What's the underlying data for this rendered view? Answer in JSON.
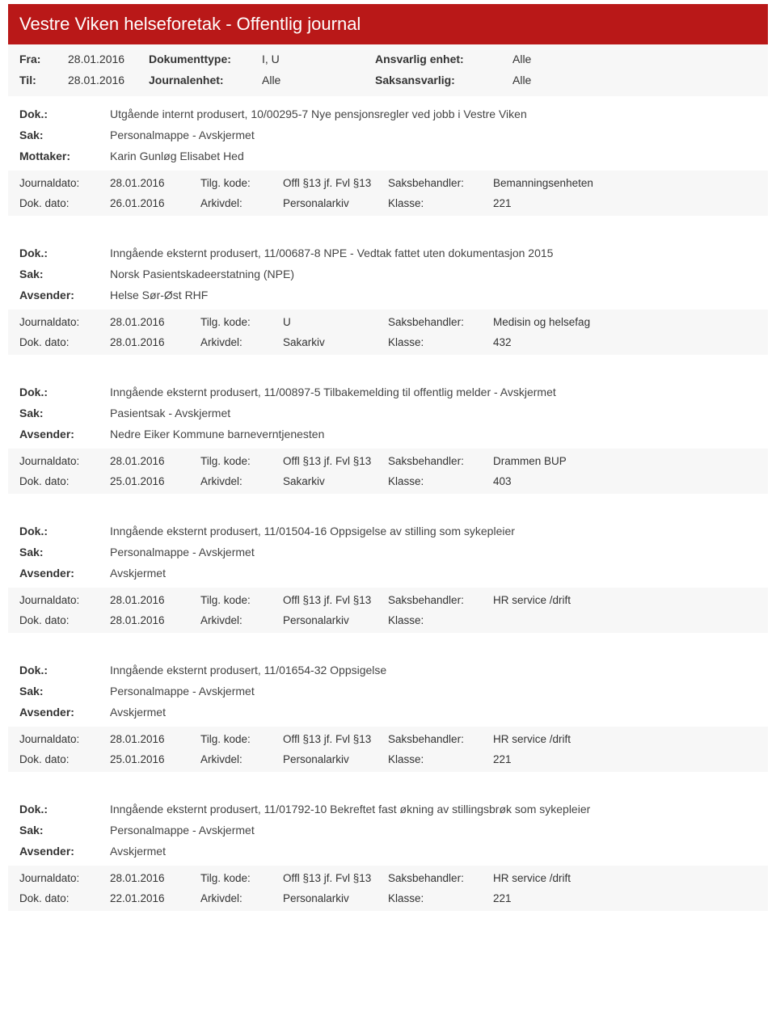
{
  "page_title": "Vestre Viken helseforetak - Offentlig journal",
  "filters": {
    "fra_label": "Fra:",
    "fra_value": "28.01.2016",
    "til_label": "Til:",
    "til_value": "28.01.2016",
    "dokumenttype_label": "Dokumenttype:",
    "dokumenttype_value": "I, U",
    "journalenhet_label": "Journalenhet:",
    "journalenhet_value": "Alle",
    "ansvarlig_label": "Ansvarlig enhet:",
    "ansvarlig_value": "Alle",
    "saksansvarlig_label": "Saksansvarlig:",
    "saksansvarlig_value": "Alle"
  },
  "labels": {
    "dok": "Dok.:",
    "sak": "Sak:",
    "mottaker": "Mottaker:",
    "avsender": "Avsender:",
    "journaldato": "Journaldato:",
    "dokdato": "Dok. dato:",
    "tilgkode": "Tilg. kode:",
    "arkivdel": "Arkivdel:",
    "saksbehandler": "Saksbehandler:",
    "klasse": "Klasse:"
  },
  "entries": [
    {
      "dok": "Utgående internt produsert, 10/00295-7 Nye pensjonsregler ved jobb i Vestre Viken",
      "sak": "Personalmappe - Avskjermet",
      "party_label": "Mottaker:",
      "party_value": "Karin Gunløg Elisabet Hed",
      "journaldato": "28.01.2016",
      "tilgkode": "Offl §13 jf. Fvl §13",
      "saksbehandler": "Bemanningsenheten",
      "dokdato": "26.01.2016",
      "arkivdel": "Personalarkiv",
      "klasse": "221"
    },
    {
      "dok": "Inngående eksternt produsert, 11/00687-8 NPE - Vedtak fattet uten dokumentasjon 2015",
      "sak": "Norsk Pasientskadeerstatning (NPE)",
      "party_label": "Avsender:",
      "party_value": "Helse Sør-Øst RHF",
      "journaldato": "28.01.2016",
      "tilgkode": "U",
      "saksbehandler": "Medisin og helsefag",
      "dokdato": "28.01.2016",
      "arkivdel": "Sakarkiv",
      "klasse": "432"
    },
    {
      "dok": "Inngående eksternt produsert, 11/00897-5 Tilbakemelding til offentlig melder - Avskjermet",
      "sak": "Pasientsak - Avskjermet",
      "party_label": "Avsender:",
      "party_value": "Nedre Eiker Kommune barneverntjenesten",
      "journaldato": "28.01.2016",
      "tilgkode": "Offl §13 jf. Fvl §13",
      "saksbehandler": "Drammen BUP",
      "dokdato": "25.01.2016",
      "arkivdel": "Sakarkiv",
      "klasse": "403"
    },
    {
      "dok": "Inngående eksternt produsert, 11/01504-16 Oppsigelse av stilling som sykepleier",
      "sak": "Personalmappe - Avskjermet",
      "party_label": "Avsender:",
      "party_value": "Avskjermet",
      "journaldato": "28.01.2016",
      "tilgkode": "Offl §13 jf. Fvl §13",
      "saksbehandler": "HR service /drift",
      "dokdato": "28.01.2016",
      "arkivdel": "Personalarkiv",
      "klasse": ""
    },
    {
      "dok": "Inngående eksternt produsert, 11/01654-32 Oppsigelse",
      "sak": "Personalmappe - Avskjermet",
      "party_label": "Avsender:",
      "party_value": "Avskjermet",
      "journaldato": "28.01.2016",
      "tilgkode": "Offl §13 jf. Fvl §13",
      "saksbehandler": "HR service /drift",
      "dokdato": "25.01.2016",
      "arkivdel": "Personalarkiv",
      "klasse": "221"
    },
    {
      "dok": "Inngående eksternt produsert, 11/01792-10 Bekreftet fast økning av stillingsbrøk som sykepleier",
      "sak": "Personalmappe - Avskjermet",
      "party_label": "Avsender:",
      "party_value": "Avskjermet",
      "journaldato": "28.01.2016",
      "tilgkode": "Offl §13 jf. Fvl §13",
      "saksbehandler": "HR service /drift",
      "dokdato": "22.01.2016",
      "arkivdel": "Personalarkiv",
      "klasse": "221"
    }
  ],
  "colors": {
    "header_bg": "#b91818",
    "header_text": "#ffffff",
    "panel_bg": "#f7f7f7",
    "text": "#333333"
  }
}
